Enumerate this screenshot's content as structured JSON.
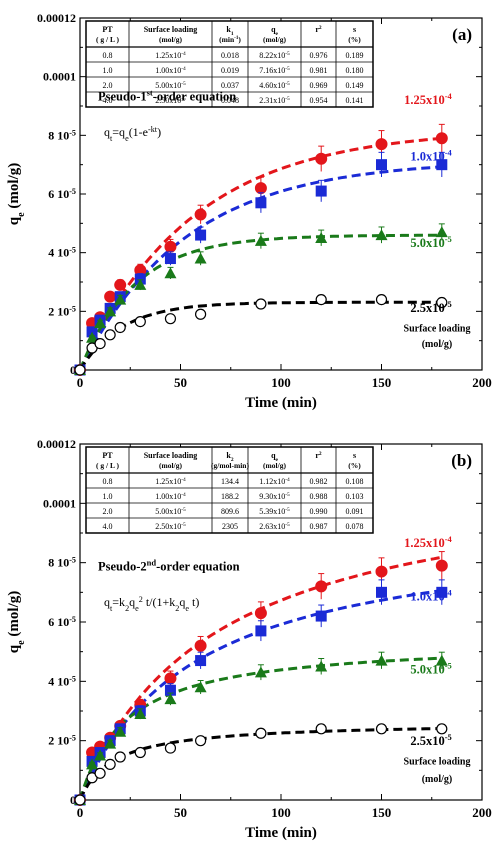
{
  "chart_data": [
    {
      "panel_label": "(a)",
      "type": "scatter",
      "xlabel": "Time (min)",
      "ylabel": "q",
      "ylabel_sub": "e",
      "ylabel_unit": " (mol/g)",
      "xlim": [
        0,
        200
      ],
      "ylim": [
        0,
        0.00012
      ],
      "x_ticks": [
        0,
        50,
        100,
        150,
        200
      ],
      "y_ticks": [
        0,
        2e-05,
        4e-05,
        6e-05,
        8e-05,
        0.0001,
        0.00012
      ],
      "y_tick_labels": [
        "0",
        "2 10-5",
        "4 10-5",
        "6 10-5",
        "8 10-5",
        "0.0001",
        "0.00012"
      ],
      "model_title": "Pseudo-1st-order equation",
      "equation": "qt=qe(1-e-kt)",
      "surface_loading_caption": [
        "Surface loading",
        "(mol/g)"
      ],
      "table": {
        "headers": [
          [
            "PT",
            "( g / L )"
          ],
          [
            "Surface loading",
            "(mol/g)"
          ],
          [
            "k1",
            "(min-1)"
          ],
          [
            "qe",
            "(mol/g)"
          ],
          [
            "r2",
            ""
          ],
          [
            "s",
            "(%)"
          ]
        ],
        "rows": [
          [
            "0.8",
            "1.25x10-4",
            "0.018",
            "8.22x10-5",
            "0.976",
            "0.189"
          ],
          [
            "1.0",
            "1.00x10-4",
            "0.019",
            "7.16x10-5",
            "0.981",
            "0.180"
          ],
          [
            "2.0",
            "5.00x10-5",
            "0.037",
            "4.60x10-5",
            "0.969",
            "0.149"
          ],
          [
            "4.0",
            "2.50x10-5",
            "0.048",
            "2.31x10-5",
            "0.954",
            "0.141"
          ]
        ]
      },
      "x": [
        0,
        6,
        10,
        15,
        20,
        30,
        45,
        60,
        90,
        120,
        150,
        180
      ],
      "series": [
        {
          "name": "1.25x10-4",
          "color": "#e3161b",
          "marker": "circle-filled",
          "values": [
            0,
            1.6e-05,
            1.8e-05,
            2.5e-05,
            2.9e-05,
            3.4e-05,
            4.2e-05,
            5.3e-05,
            6.2e-05,
            7.2e-05,
            7.7e-05,
            7.9e-05
          ],
          "fit": {
            "qe": 8.22e-05,
            "k": 0.018
          }
        },
        {
          "name": "1.0x10-4",
          "color": "#1b2bd6",
          "marker": "square-filled",
          "values": [
            0,
            1.3e-05,
            1.7e-05,
            2.1e-05,
            2.5e-05,
            3.1e-05,
            3.8e-05,
            4.6e-05,
            5.7e-05,
            6.1e-05,
            7e-05,
            7e-05
          ],
          "fit": {
            "qe": 7.16e-05,
            "k": 0.019
          }
        },
        {
          "name": "5.0x10-5",
          "color": "#1a7a1a",
          "marker": "triangle-filled",
          "values": [
            0,
            1.1e-05,
            1.6e-05,
            2e-05,
            2.4e-05,
            2.9e-05,
            3.3e-05,
            3.8e-05,
            4.4e-05,
            4.5e-05,
            4.6e-05,
            4.7e-05
          ],
          "fit": {
            "qe": 4.6e-05,
            "k": 0.037
          }
        },
        {
          "name": "2.5x10-5",
          "color": "#000000",
          "marker": "circle-open",
          "values": [
            0,
            7.5e-06,
            9e-06,
            1.2e-05,
            1.45e-05,
            1.65e-05,
            1.75e-05,
            1.9e-05,
            2.25e-05,
            2.4e-05,
            2.4e-05,
            2.3e-05
          ],
          "fit": {
            "qe": 2.31e-05,
            "k": 0.048
          }
        }
      ]
    },
    {
      "panel_label": "(b)",
      "type": "scatter",
      "xlabel": "Time (min)",
      "ylabel": "q",
      "ylabel_sub": "e",
      "ylabel_unit": " (mol/g)",
      "xlim": [
        0,
        200
      ],
      "ylim": [
        0,
        0.00012
      ],
      "x_ticks": [
        0,
        50,
        100,
        150,
        200
      ],
      "y_ticks": [
        0,
        2e-05,
        4e-05,
        6e-05,
        8e-05,
        0.0001,
        0.00012
      ],
      "y_tick_labels": [
        "0",
        "2 10-5",
        "4 10-5",
        "6 10-5",
        "8 10-5",
        "0.0001",
        "0.00012"
      ],
      "model_title": "Pseudo-2nd-order equation",
      "equation": "qt=k2qe2 t/(1+k2qe t)",
      "surface_loading_caption": [
        "Surface loading",
        "(mol/g)"
      ],
      "table": {
        "headers": [
          [
            "PT",
            "( g / L )"
          ],
          [
            "Surface loading",
            "(mol/g)"
          ],
          [
            "k2",
            "(g/mol-min)"
          ],
          [
            "qe",
            "(mol/g)"
          ],
          [
            "r2",
            ""
          ],
          [
            "s",
            "(%)"
          ]
        ],
        "rows": [
          [
            "0.8",
            "1.25x10-4",
            "134.4",
            "1.12x10-4",
            "0.982",
            "0.108"
          ],
          [
            "1.0",
            "1.00x10-4",
            "188.2",
            "9.30x10-5",
            "0.988",
            "0.103"
          ],
          [
            "2.0",
            "5.00x10-5",
            "809.6",
            "5.39x10-5",
            "0.990",
            "0.091"
          ],
          [
            "4.0",
            "2.50x10-5",
            "2305",
            "2.63x10-5",
            "0.987",
            "0.078"
          ]
        ]
      },
      "x": [
        0,
        6,
        10,
        15,
        20,
        30,
        45,
        60,
        90,
        120,
        150,
        180
      ],
      "series": [
        {
          "name": "1.25x10-4",
          "color": "#e3161b",
          "marker": "circle-filled",
          "values": [
            0,
            1.6e-05,
            1.8e-05,
            2.1e-05,
            2.5e-05,
            3.2e-05,
            4.1e-05,
            5.2e-05,
            6.3e-05,
            7.2e-05,
            7.7e-05,
            7.9e-05
          ],
          "fit": {
            "qe": 0.000112,
            "k": 134.4
          }
        },
        {
          "name": "1.0x10-4",
          "color": "#1b2bd6",
          "marker": "square-filled",
          "values": [
            0,
            1.3e-05,
            1.6e-05,
            2e-05,
            2.4e-05,
            3e-05,
            3.7e-05,
            4.7e-05,
            5.7e-05,
            6.2e-05,
            7e-05,
            7e-05
          ],
          "fit": {
            "qe": 9.3e-05,
            "k": 188.2
          }
        },
        {
          "name": "5.0x10-5",
          "color": "#1a7a1a",
          "marker": "triangle-filled",
          "values": [
            0,
            1.2e-05,
            1.5e-05,
            1.9e-05,
            2.3e-05,
            2.9e-05,
            3.4e-05,
            3.8e-05,
            4.3e-05,
            4.5e-05,
            4.7e-05,
            4.7e-05
          ],
          "fit": {
            "qe": 5.39e-05,
            "k": 809.6
          }
        },
        {
          "name": "2.5x10-5",
          "color": "#000000",
          "marker": "circle-open",
          "values": [
            0,
            7.5e-06,
            9e-06,
            1.2e-05,
            1.45e-05,
            1.6e-05,
            1.75e-05,
            2e-05,
            2.25e-05,
            2.4e-05,
            2.4e-05,
            2.4e-05
          ],
          "fit": {
            "qe": 2.63e-05,
            "k": 2305
          }
        }
      ]
    }
  ]
}
